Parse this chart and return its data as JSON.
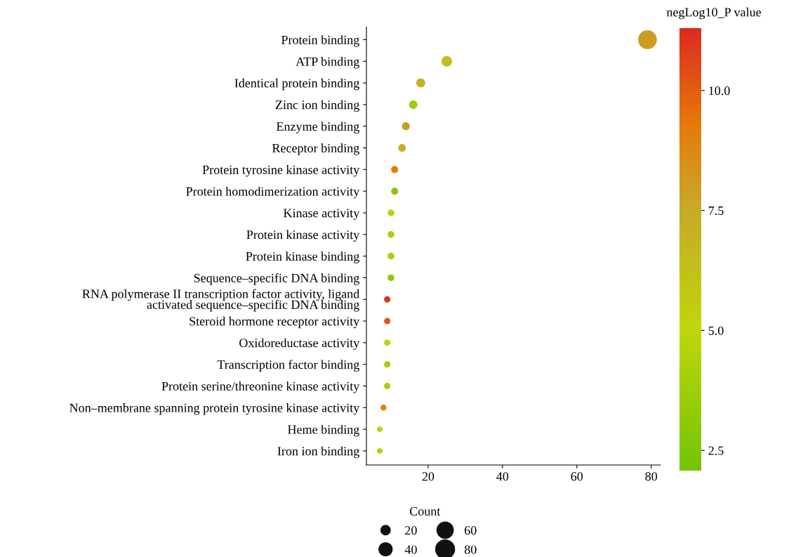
{
  "chart_data": {
    "type": "bubble",
    "orientation": "horizontal",
    "categories": [
      "Protein binding",
      "ATP binding",
      "Identical protein binding",
      "Zinc ion binding",
      "Enzyme binding",
      "Receptor binding",
      "Protein tyrosine kinase activity",
      "Protein homodimerization activity",
      "Kinase activity",
      "Protein kinase activity",
      "Protein kinase binding",
      "Sequence–specific DNA binding",
      "RNA polymerase II transcription factor activity, ligand\nactivated sequence–specific DNA binding",
      "Steroid hormone receptor activity",
      "Oxidoreductase activity",
      "Transcription factor binding",
      "Protein serine/threonine kinase activity",
      "Non–membrane spanning protein tyrosine kinase activity",
      "Heme binding",
      "Iron ion binding"
    ],
    "values": [
      79,
      25,
      18,
      16,
      14,
      13,
      11,
      11,
      10,
      10,
      10,
      10,
      9,
      9,
      9,
      9,
      9,
      8,
      7,
      7
    ],
    "sizes": [
      79,
      25,
      18,
      16,
      14,
      13,
      11,
      11,
      10,
      10,
      10,
      10,
      9,
      9,
      9,
      9,
      9,
      8,
      7,
      7
    ],
    "cvalues": [
      8.0,
      6.3,
      7.2,
      3.8,
      8.0,
      7.2,
      9.3,
      2.8,
      5.5,
      4.2,
      4.0,
      3.0,
      11.0,
      10.2,
      5.0,
      4.0,
      4.3,
      9.0,
      5.5,
      4.5
    ],
    "xlim": [
      3.4,
      82.5
    ],
    "xticks": [
      20,
      40,
      60,
      80
    ],
    "clabel": "negLog10_P value",
    "clim": [
      2.08,
      11.3
    ],
    "cticks": [
      2.5,
      {
        "value": 5,
        "label": "5.0"
      },
      7.5,
      {
        "value": 10,
        "label": "10.0"
      }
    ],
    "legend_title": "Count",
    "size_legend": [
      20,
      40,
      60,
      80
    ],
    "grid": false
  }
}
